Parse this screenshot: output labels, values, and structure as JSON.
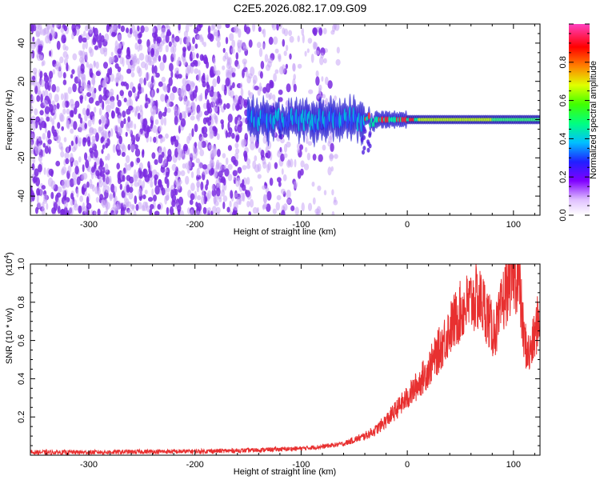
{
  "title": "C2E5.2026.082.17.09.G09",
  "colors": {
    "snr_line": "#e83030",
    "spectro_noise": "#7a2ae0"
  },
  "chart_data": [
    {
      "type": "heatmap",
      "xlabel": "Height of straight line (km)",
      "ylabel": "Frequency (Hz)",
      "xlim": [
        -355,
        125
      ],
      "ylim": [
        -50,
        50
      ],
      "x_ticks": [
        -300,
        -200,
        -100,
        0,
        100
      ],
      "y_ticks": [
        -40,
        -20,
        0,
        20,
        40
      ],
      "colorbar": {
        "label": "Normalized spectral amplitude",
        "range": [
          0,
          1
        ],
        "ticks": [
          "0.0",
          "0.2",
          "0.4",
          "0.6",
          "0.8"
        ],
        "colormap": [
          "#ffffff",
          "#cc88ff",
          "#8000ff",
          "#3030ff",
          "#00ffff",
          "#00ff40",
          "#ffff00",
          "#ff8000",
          "#ff0000",
          "#ff00a0"
        ]
      },
      "features": {
        "noise_region_km": [
          -355,
          -65
        ],
        "signal_start_km": -150,
        "signal_center_hz": 0
      }
    },
    {
      "type": "line",
      "xlabel": "Height of straight line (km)",
      "ylabel": "SNR (10 * v/v)",
      "y_multiplier": "(x10",
      "y_multiplier_exp": "4",
      "y_multiplier_close": ")",
      "xlim": [
        -355,
        125
      ],
      "ylim": [
        0,
        1.0
      ],
      "x_ticks": [
        -300,
        -200,
        -100,
        0,
        100
      ],
      "y_ticks": [
        "0.2",
        "0.4",
        "0.6",
        "0.8",
        "1.0"
      ],
      "series": [
        {
          "x": [
            -355,
            -300,
            -250,
            -200,
            -150,
            -100,
            -80,
            -60,
            -50,
            -40,
            -30,
            -20,
            -10,
            0,
            10,
            20,
            30,
            40,
            50,
            55,
            60,
            65,
            70,
            75,
            80,
            85,
            90,
            95,
            100,
            105,
            110,
            115,
            120,
            125
          ],
          "y": [
            0.015,
            0.015,
            0.018,
            0.02,
            0.025,
            0.035,
            0.045,
            0.06,
            0.08,
            0.1,
            0.13,
            0.18,
            0.24,
            0.3,
            0.37,
            0.45,
            0.55,
            0.66,
            0.75,
            0.78,
            0.8,
            0.82,
            0.8,
            0.74,
            0.65,
            0.67,
            0.8,
            0.9,
            0.96,
            0.92,
            0.6,
            0.52,
            0.62,
            0.75
          ]
        }
      ]
    }
  ]
}
